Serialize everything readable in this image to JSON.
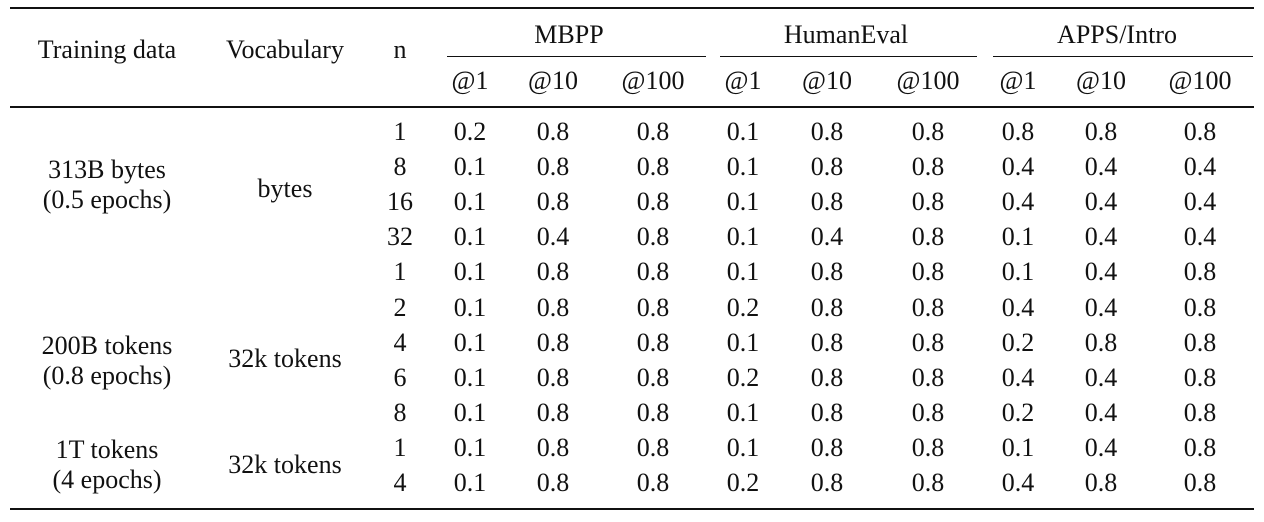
{
  "table": {
    "headers": {
      "training_data": "Training data",
      "vocabulary": "Vocabulary",
      "n": "n",
      "groups": [
        "MBPP",
        "HumanEval",
        "APPS/Intro"
      ],
      "subheaders": [
        "@1",
        "@10",
        "@100",
        "@1",
        "@10",
        "@100",
        "@1",
        "@10",
        "@100"
      ]
    },
    "groups": [
      {
        "training_data": [
          "313B bytes",
          "(0.5 epochs)"
        ],
        "vocabulary": "bytes",
        "rows": [
          {
            "n": "1",
            "values": [
              "0.2",
              "0.8",
              "0.8",
              "0.1",
              "0.8",
              "0.8",
              "0.8",
              "0.8",
              "0.8"
            ]
          },
          {
            "n": "8",
            "values": [
              "0.1",
              "0.8",
              "0.8",
              "0.1",
              "0.8",
              "0.8",
              "0.4",
              "0.4",
              "0.4"
            ]
          },
          {
            "n": "16",
            "values": [
              "0.1",
              "0.8",
              "0.8",
              "0.1",
              "0.8",
              "0.8",
              "0.4",
              "0.4",
              "0.4"
            ]
          },
          {
            "n": "32",
            "values": [
              "0.1",
              "0.4",
              "0.8",
              "0.1",
              "0.4",
              "0.8",
              "0.1",
              "0.4",
              "0.4"
            ]
          }
        ]
      },
      {
        "training_data": [
          "200B tokens",
          "(0.8 epochs)"
        ],
        "vocabulary": "32k tokens",
        "rows": [
          {
            "n": "1",
            "values": [
              "0.1",
              "0.8",
              "0.8",
              "0.1",
              "0.8",
              "0.8",
              "0.1",
              "0.4",
              "0.8"
            ]
          },
          {
            "n": "2",
            "values": [
              "0.1",
              "0.8",
              "0.8",
              "0.2",
              "0.8",
              "0.8",
              "0.4",
              "0.4",
              "0.8"
            ]
          },
          {
            "n": "4",
            "values": [
              "0.1",
              "0.8",
              "0.8",
              "0.1",
              "0.8",
              "0.8",
              "0.2",
              "0.8",
              "0.8"
            ]
          },
          {
            "n": "6",
            "values": [
              "0.1",
              "0.8",
              "0.8",
              "0.2",
              "0.8",
              "0.8",
              "0.4",
              "0.4",
              "0.8"
            ]
          },
          {
            "n": "8",
            "values": [
              "0.1",
              "0.8",
              "0.8",
              "0.1",
              "0.8",
              "0.8",
              "0.2",
              "0.4",
              "0.8"
            ]
          }
        ]
      },
      {
        "training_data": [
          "1T tokens",
          "(4 epochs)"
        ],
        "vocabulary": "32k tokens",
        "rows": [
          {
            "n": "1",
            "values": [
              "0.1",
              "0.8",
              "0.8",
              "0.1",
              "0.8",
              "0.8",
              "0.1",
              "0.4",
              "0.8"
            ]
          },
          {
            "n": "4",
            "values": [
              "0.1",
              "0.8",
              "0.8",
              "0.2",
              "0.8",
              "0.8",
              "0.4",
              "0.8",
              "0.8"
            ]
          }
        ]
      }
    ]
  }
}
